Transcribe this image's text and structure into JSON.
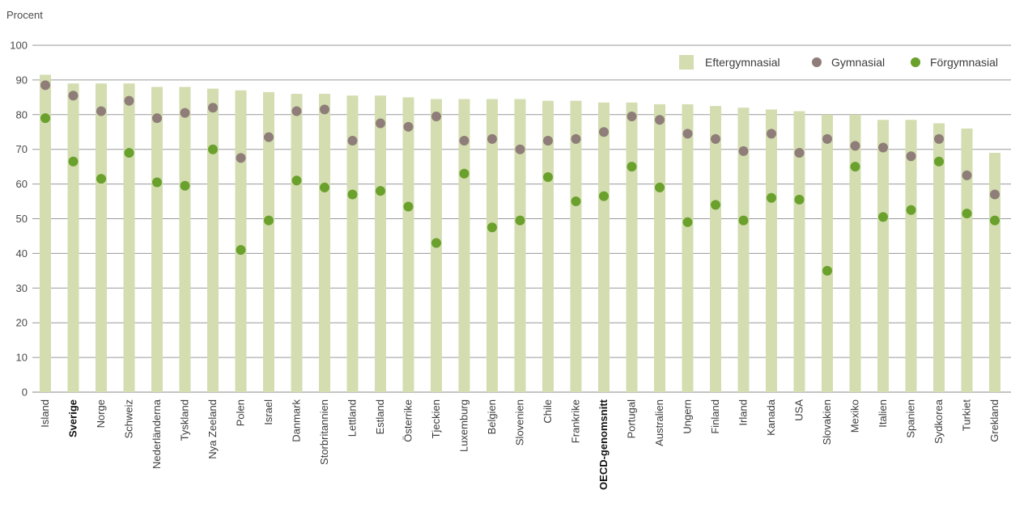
{
  "chart_data": {
    "type": "bar",
    "ylabel": "Procent",
    "ylim": [
      0,
      100
    ],
    "yticks": [
      0,
      10,
      20,
      30,
      40,
      50,
      60,
      70,
      80,
      90,
      100
    ],
    "grid": true,
    "legend_position": "top-right",
    "highlighted_categories": [
      "Sverige",
      "OECD-genomsnitt"
    ],
    "categories": [
      "Island",
      "Sverige",
      "Norge",
      "Schweiz",
      "Nederländerna",
      "Tyskland",
      "Nya Zeeland",
      "Polen",
      "Israel",
      "Danmark",
      "Storbritannien",
      "Lettland",
      "Estland",
      "Österrike",
      "Tjeckien",
      "Luxemburg",
      "Belgien",
      "Slovenien",
      "Chile",
      "Frankrike",
      "OECD-genomsnitt",
      "Portugal",
      "Australien",
      "Ungern",
      "Finland",
      "Irland",
      "Kanada",
      "USA",
      "Slovakien",
      "Mexiko",
      "Italien",
      "Spanien",
      "Sydkorea",
      "Turkiet",
      "Grekland"
    ],
    "series": [
      {
        "name": "Eftergymnasial",
        "kind": "bar",
        "color": "#d3ddb0",
        "values": [
          91.5,
          89,
          89,
          89,
          88,
          88,
          87.5,
          87,
          86.5,
          86,
          86,
          85.5,
          85.5,
          85,
          84.5,
          84.5,
          84.5,
          84.5,
          84,
          84,
          83.5,
          83.5,
          83,
          83,
          82.5,
          82,
          81.5,
          81,
          80,
          80,
          78.5,
          78.5,
          77.5,
          76,
          69
        ]
      },
      {
        "name": "Gymnasial",
        "kind": "dot",
        "color": "#8f7d79",
        "values": [
          88.5,
          85.5,
          81,
          84,
          79,
          80.5,
          82,
          67.5,
          73.5,
          81,
          81.5,
          72.5,
          77.5,
          76.5,
          79.5,
          72.5,
          73,
          70,
          72.5,
          73,
          75,
          79.5,
          78.5,
          74.5,
          73,
          69.5,
          74.5,
          69,
          73,
          71,
          70.5,
          68,
          73,
          62.5,
          57
        ]
      },
      {
        "name": "Förgymnasial",
        "kind": "dot",
        "color": "#6aa02c",
        "values": [
          79,
          66.5,
          61.5,
          69,
          60.5,
          59.5,
          70,
          41,
          49.5,
          61,
          59,
          57,
          58,
          53.5,
          43,
          63,
          47.5,
          49.5,
          62,
          55,
          56.5,
          65,
          59,
          49,
          54,
          49.5,
          56,
          55.5,
          35,
          65,
          50.5,
          52.5,
          66.5,
          51.5,
          49.5
        ]
      }
    ]
  }
}
